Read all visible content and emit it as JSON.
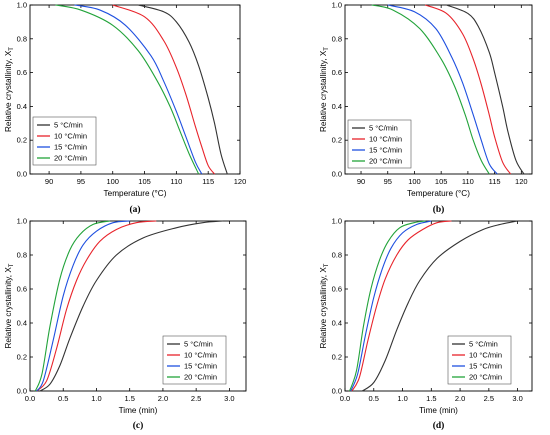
{
  "colors": {
    "5": "#333333",
    "10": "#e8242b",
    "15": "#1f50e0",
    "20": "#22a33a"
  },
  "chart_data": [
    {
      "type": "line",
      "panel_label": "(a)",
      "xlabel": "Temperature (°C)",
      "ylabel": "Relative crystallinity, X",
      "ylabel_sub": "T",
      "xlim": [
        87,
        120
      ],
      "ylim": [
        0,
        1
      ],
      "xticks": [
        90,
        95,
        100,
        105,
        110,
        115,
        120
      ],
      "xtick_labels": [
        "90",
        "95",
        "100",
        "105",
        "110",
        "115",
        "120"
      ],
      "yticks": [
        0,
        0.2,
        0.4,
        0.6,
        0.8,
        1.0
      ],
      "ytick_labels": [
        "0.0",
        "0.2",
        "0.4",
        "0.6",
        "0.8",
        "1.0"
      ],
      "legend_position": "bottom-left",
      "series": [
        {
          "name": "5 °C/min",
          "key": "5",
          "x": [
            104,
            108,
            110,
            112,
            113.5,
            115,
            116,
            117,
            118
          ],
          "y": [
            1.0,
            0.96,
            0.9,
            0.78,
            0.64,
            0.45,
            0.3,
            0.12,
            0.0
          ]
        },
        {
          "name": "10 °C/min",
          "key": "10",
          "x": [
            100,
            105,
            108,
            110,
            111.5,
            113,
            114,
            115,
            116
          ],
          "y": [
            1.0,
            0.93,
            0.79,
            0.63,
            0.47,
            0.28,
            0.16,
            0.05,
            0.0
          ]
        },
        {
          "name": "15 °C/min",
          "key": "15",
          "x": [
            94,
            98,
            102,
            106,
            108,
            110,
            111.5,
            113,
            114
          ],
          "y": [
            1.0,
            0.97,
            0.88,
            0.7,
            0.55,
            0.37,
            0.22,
            0.07,
            0.0
          ]
        },
        {
          "name": "20 °C/min",
          "key": "20",
          "x": [
            91,
            95,
            100,
            104,
            107,
            109,
            110.5,
            112,
            113.5
          ],
          "y": [
            1.0,
            0.97,
            0.88,
            0.73,
            0.55,
            0.4,
            0.26,
            0.12,
            0.0
          ]
        }
      ]
    },
    {
      "type": "line",
      "panel_label": "(b)",
      "xlabel": "Temperature (°C)",
      "ylabel": "Relative crystallinity, X",
      "ylabel_sub": "T",
      "xlim": [
        87,
        122
      ],
      "ylim": [
        0,
        1
      ],
      "xticks": [
        90,
        95,
        100,
        105,
        110,
        115,
        120
      ],
      "xtick_labels": [
        "90",
        "95",
        "100",
        "105",
        "110",
        "115",
        "120"
      ],
      "yticks": [
        0,
        0.2,
        0.4,
        0.6,
        0.8,
        1.0
      ],
      "ytick_labels": [
        "0.0",
        "0.2",
        "0.4",
        "0.6",
        "0.8",
        "1.0"
      ],
      "legend_position": "bottom-left",
      "series": [
        {
          "name": "5 °C/min",
          "key": "5",
          "x": [
            106,
            110,
            112,
            114,
            115,
            116.5,
            117.5,
            119,
            120.5
          ],
          "y": [
            1.0,
            0.95,
            0.87,
            0.72,
            0.6,
            0.4,
            0.25,
            0.08,
            0.0
          ]
        },
        {
          "name": "10 °C/min",
          "key": "10",
          "x": [
            102,
            106,
            109,
            111,
            112.5,
            114,
            115,
            116.5,
            118
          ],
          "y": [
            1.0,
            0.95,
            0.83,
            0.68,
            0.53,
            0.35,
            0.22,
            0.07,
            0.0
          ]
        },
        {
          "name": "15 °C/min",
          "key": "15",
          "x": [
            95,
            100,
            104,
            107,
            109,
            111,
            112.5,
            114,
            115.5
          ],
          "y": [
            1.0,
            0.96,
            0.86,
            0.69,
            0.54,
            0.35,
            0.2,
            0.06,
            0.0
          ]
        },
        {
          "name": "20 °C/min",
          "key": "20",
          "x": [
            92,
            96,
            101,
            105,
            107.5,
            109.5,
            111,
            112.5,
            114
          ],
          "y": [
            1.0,
            0.97,
            0.86,
            0.68,
            0.52,
            0.35,
            0.2,
            0.08,
            0.0
          ]
        }
      ]
    },
    {
      "type": "line",
      "panel_label": "(c)",
      "xlabel": "Time (min)",
      "ylabel": "Relative crystallinity, X",
      "ylabel_sub": "T",
      "xlim": [
        0,
        3.25
      ],
      "ylim": [
        0,
        1
      ],
      "xticks": [
        0,
        0.5,
        1.0,
        1.5,
        2.0,
        2.5,
        3.0
      ],
      "xtick_labels": [
        "0.0",
        "0.5",
        "1.0",
        "1.5",
        "2.0",
        "2.5",
        "3.0"
      ],
      "yticks": [
        0,
        0.2,
        0.4,
        0.6,
        0.8,
        1.0
      ],
      "ytick_labels": [
        "0.0",
        "0.2",
        "0.4",
        "0.6",
        "0.8",
        "1.0"
      ],
      "legend_position": "bottom-right",
      "series": [
        {
          "name": "5 °C/min",
          "key": "5",
          "x": [
            0.15,
            0.3,
            0.45,
            0.6,
            0.8,
            1.0,
            1.3,
            1.7,
            2.2,
            2.6,
            2.9
          ],
          "y": [
            0.0,
            0.04,
            0.15,
            0.31,
            0.5,
            0.65,
            0.8,
            0.9,
            0.96,
            0.99,
            1.0
          ]
        },
        {
          "name": "10 °C/min",
          "key": "10",
          "x": [
            0.1,
            0.25,
            0.4,
            0.55,
            0.7,
            0.85,
            1.05,
            1.3,
            1.6,
            1.9
          ],
          "y": [
            0.0,
            0.06,
            0.25,
            0.48,
            0.65,
            0.77,
            0.88,
            0.95,
            0.99,
            1.0
          ]
        },
        {
          "name": "15 °C/min",
          "key": "15",
          "x": [
            0.1,
            0.2,
            0.35,
            0.5,
            0.65,
            0.8,
            1.0,
            1.25,
            1.5
          ],
          "y": [
            0.0,
            0.06,
            0.3,
            0.56,
            0.74,
            0.86,
            0.94,
            0.99,
            1.0
          ]
        },
        {
          "name": "20 °C/min",
          "key": "20",
          "x": [
            0.08,
            0.18,
            0.3,
            0.45,
            0.6,
            0.75,
            0.95,
            1.2
          ],
          "y": [
            0.0,
            0.1,
            0.38,
            0.66,
            0.83,
            0.92,
            0.98,
            1.0
          ]
        }
      ]
    },
    {
      "type": "line",
      "panel_label": "(d)",
      "xlabel": "Time (min)",
      "ylabel": "Relative crystallinity, X",
      "ylabel_sub": "T",
      "xlim": [
        0,
        3.25
      ],
      "ylim": [
        0,
        1
      ],
      "xticks": [
        0,
        0.5,
        1.0,
        1.5,
        2.0,
        2.5,
        3.0
      ],
      "xtick_labels": [
        "0.0",
        "0.5",
        "1.0",
        "1.5",
        "2.0",
        "2.5",
        "3.0"
      ],
      "yticks": [
        0,
        0.2,
        0.4,
        0.6,
        0.8,
        1.0
      ],
      "ytick_labels": [
        "0.0",
        "0.2",
        "0.4",
        "0.6",
        "0.8",
        "1.0"
      ],
      "legend_position": "bottom-right",
      "series": [
        {
          "name": "5 °C/min",
          "key": "5",
          "x": [
            0.3,
            0.5,
            0.7,
            0.9,
            1.1,
            1.3,
            1.6,
            2.0,
            2.4,
            2.7,
            3.0
          ],
          "y": [
            0.0,
            0.05,
            0.18,
            0.36,
            0.52,
            0.65,
            0.78,
            0.88,
            0.95,
            0.98,
            1.0
          ]
        },
        {
          "name": "10 °C/min",
          "key": "10",
          "x": [
            0.12,
            0.25,
            0.4,
            0.55,
            0.7,
            0.9,
            1.1,
            1.35,
            1.6,
            1.85
          ],
          "y": [
            0.0,
            0.08,
            0.3,
            0.5,
            0.66,
            0.8,
            0.89,
            0.95,
            0.99,
            1.0
          ]
        },
        {
          "name": "15 °C/min",
          "key": "15",
          "x": [
            0.1,
            0.22,
            0.35,
            0.5,
            0.65,
            0.8,
            1.0,
            1.25,
            1.5
          ],
          "y": [
            0.0,
            0.1,
            0.32,
            0.55,
            0.72,
            0.84,
            0.93,
            0.98,
            1.0
          ]
        },
        {
          "name": "20 °C/min",
          "key": "20",
          "x": [
            0.08,
            0.2,
            0.32,
            0.45,
            0.6,
            0.75,
            0.95,
            1.2,
            1.4
          ],
          "y": [
            0.0,
            0.12,
            0.38,
            0.6,
            0.77,
            0.88,
            0.96,
            0.99,
            1.0
          ]
        }
      ]
    }
  ]
}
